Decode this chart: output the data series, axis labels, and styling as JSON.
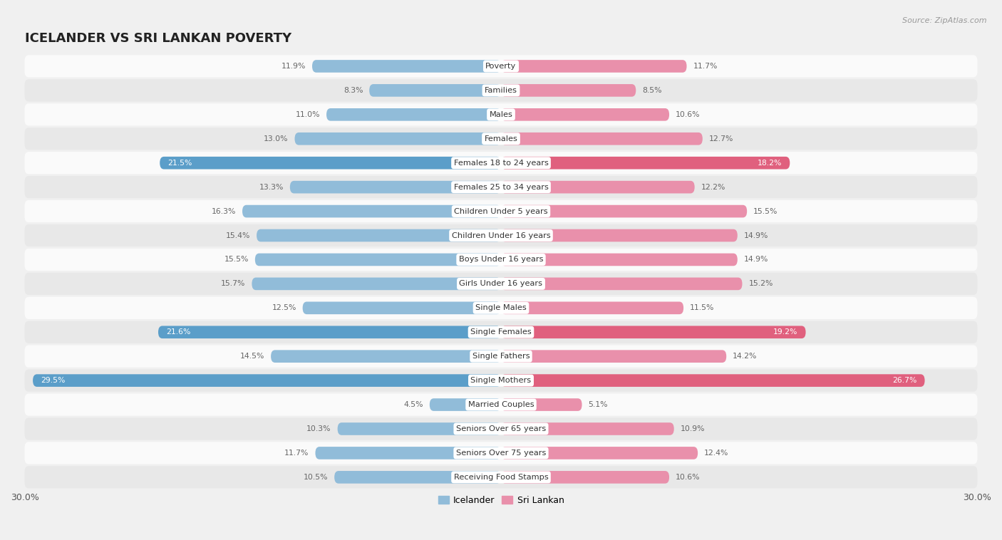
{
  "title": "ICELANDER VS SRI LANKAN POVERTY",
  "source": "Source: ZipAtlas.com",
  "categories": [
    "Poverty",
    "Families",
    "Males",
    "Females",
    "Females 18 to 24 years",
    "Females 25 to 34 years",
    "Children Under 5 years",
    "Children Under 16 years",
    "Boys Under 16 years",
    "Girls Under 16 years",
    "Single Males",
    "Single Females",
    "Single Fathers",
    "Single Mothers",
    "Married Couples",
    "Seniors Over 65 years",
    "Seniors Over 75 years",
    "Receiving Food Stamps"
  ],
  "icelander": [
    11.9,
    8.3,
    11.0,
    13.0,
    21.5,
    13.3,
    16.3,
    15.4,
    15.5,
    15.7,
    12.5,
    21.6,
    14.5,
    29.5,
    4.5,
    10.3,
    11.7,
    10.5
  ],
  "sri_lankan": [
    11.7,
    8.5,
    10.6,
    12.7,
    18.2,
    12.2,
    15.5,
    14.9,
    14.9,
    15.2,
    11.5,
    19.2,
    14.2,
    26.7,
    5.1,
    10.9,
    12.4,
    10.6
  ],
  "icelander_color": "#91bcd9",
  "sri_lankan_color": "#e990ab",
  "icelander_highlight_color": "#5b9ec9",
  "sri_lankan_highlight_color": "#e0607e",
  "highlight_rows": [
    4,
    11,
    13
  ],
  "bg_color": "#f0f0f0",
  "row_bg_even": "#fafafa",
  "row_bg_odd": "#e8e8e8",
  "max_val": 30.0,
  "bar_height": 0.52,
  "title_fontsize": 13,
  "label_fontsize": 8.2,
  "value_fontsize": 7.8,
  "legend_fontsize": 9
}
